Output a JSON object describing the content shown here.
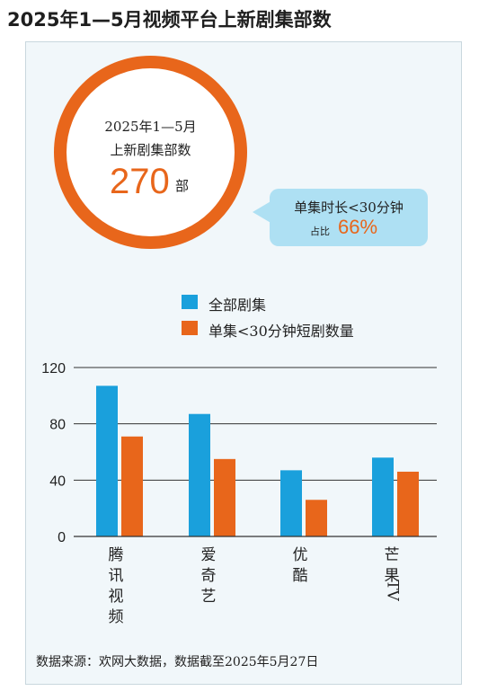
{
  "title": "2025年1—5月视频平台上新剧集部数",
  "summary": {
    "line1": "2025年1—5月",
    "line2": "上新剧集部数",
    "total": "270",
    "unit": "部"
  },
  "callout": {
    "line1": "单集时长<30分钟",
    "prefix": "占比",
    "percent": "66%"
  },
  "colors": {
    "all_series": "#1aa0dc",
    "short_series": "#e8661b",
    "ring": "#e8661b",
    "bubble": "#aee0f3"
  },
  "chart_data": {
    "type": "bar",
    "categories": [
      "腾讯视频",
      "爱奇艺",
      "优酷",
      "芒果TV"
    ],
    "series": [
      {
        "name": "全部剧集",
        "values": [
          107,
          87,
          47,
          56
        ]
      },
      {
        "name": "单集<30分钟短剧数量",
        "values": [
          71,
          55,
          26,
          46
        ]
      }
    ],
    "yticks": [
      "0",
      "40",
      "80",
      "120"
    ],
    "ylim": [
      0,
      120
    ],
    "grid": true,
    "legend": "top-center"
  },
  "source": "数据来源：欢网大数据，数据截至2025年5月27日"
}
